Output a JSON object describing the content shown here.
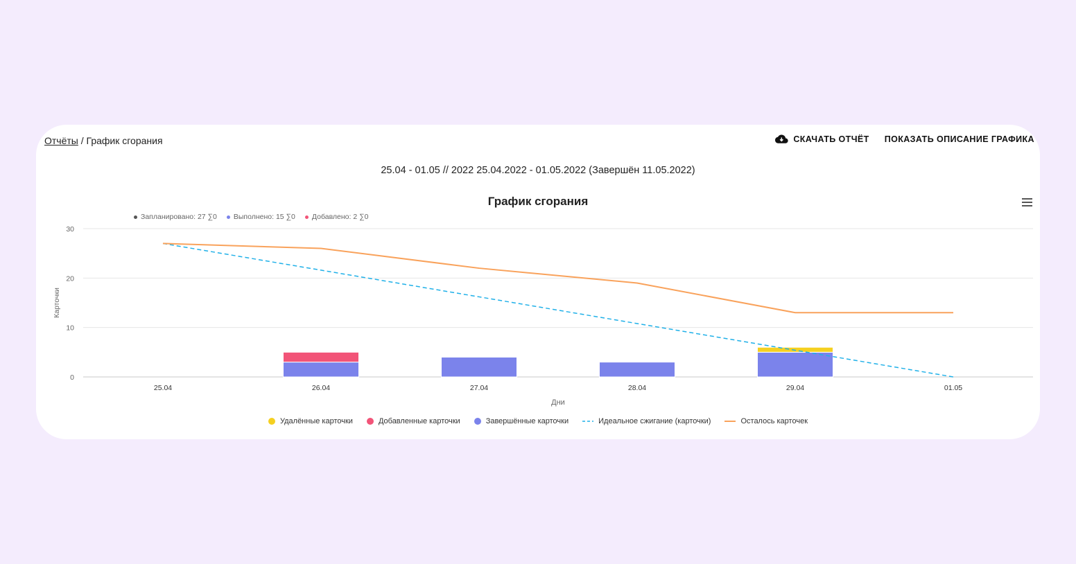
{
  "breadcrumb": {
    "link": "Отчёты",
    "separator": " / ",
    "current": "График сгорания"
  },
  "actions": {
    "download": "СКАЧАТЬ ОТЧЁТ",
    "show_description": "ПОКАЗАТЬ ОПИСАНИЕ ГРАФИКА"
  },
  "subtitle": "25.04 - 01.05 // 2022 25.04.2022 - 01.05.2022 (Завершён 11.05.2022)",
  "summary": [
    {
      "label": "Запланировано: 27 ∑0",
      "color": "#555555"
    },
    {
      "label": "Выполнено: 15 ∑0",
      "color": "#7b83eb"
    },
    {
      "label": "Добавлено: 2 ∑0",
      "color": "#f25478"
    }
  ],
  "chart_data": {
    "type": "bar",
    "title": "График сгорания",
    "xlabel": "Дни",
    "ylabel": "Карточки",
    "ylim": [
      0,
      30
    ],
    "yticks": [
      0,
      10,
      20,
      30
    ],
    "grid": true,
    "legend_position": "bottom",
    "categories": [
      "25.04",
      "26.04",
      "27.04",
      "28.04",
      "29.04",
      "01.05"
    ],
    "series": [
      {
        "name": "Удалённые карточки",
        "kind": "bar",
        "color": "#f5d020",
        "values": [
          0,
          0,
          0,
          0,
          1,
          0
        ]
      },
      {
        "name": "Добавленные карточки",
        "kind": "bar",
        "color": "#f25478",
        "values": [
          0,
          2,
          0,
          0,
          0,
          0
        ]
      },
      {
        "name": "Завершённые карточки",
        "kind": "bar",
        "color": "#7b83eb",
        "values": [
          0,
          3,
          4,
          3,
          5,
          0
        ]
      },
      {
        "name": "Идеальное сжигание (карточки)",
        "kind": "dashed-line",
        "color": "#1fb0e8",
        "values": [
          27,
          21.6,
          16.2,
          10.8,
          5.4,
          0
        ]
      },
      {
        "name": "Осталось карточек",
        "kind": "line",
        "color": "#f9a25b",
        "values": [
          27,
          26,
          22,
          19,
          13,
          13
        ]
      }
    ]
  }
}
